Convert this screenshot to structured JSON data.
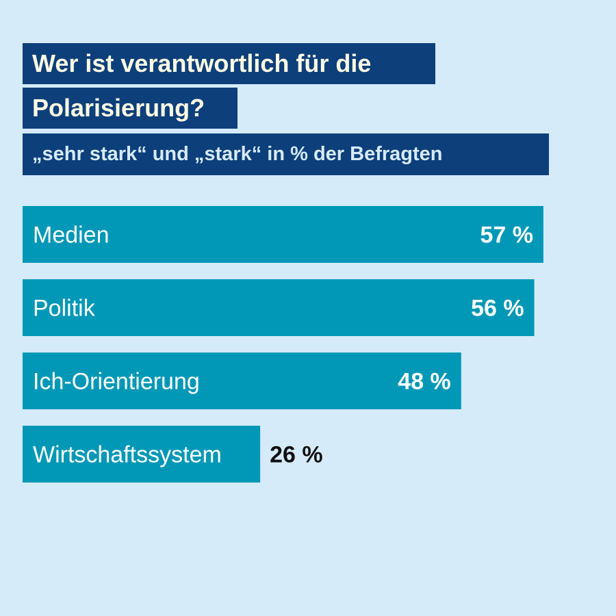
{
  "title_line1": "Wer ist verantwortlich für die",
  "title_line2": "Polarisierung?",
  "subtitle": "„sehr stark“ und „stark“ in % der Befragten",
  "colors": {
    "background": "#d5ebf9",
    "title_box": "#0d3f7a",
    "title_text": "#fffbe3",
    "bar": "#0098b6",
    "label_inside": "#ffffff",
    "label_outside": "#111111"
  },
  "chart_data": {
    "type": "bar",
    "orientation": "horizontal",
    "title": "Wer ist verantwortlich für die Polarisierung?",
    "subtitle": "„sehr stark“ und „stark“ in % der Befragten",
    "categories": [
      "Medien",
      "Politik",
      "Ich-Orientierung",
      "Wirtschaftssystem"
    ],
    "values": [
      57,
      56,
      48,
      26
    ],
    "value_labels": [
      "57 %",
      "56 %",
      "48 %",
      "26 %"
    ],
    "xlim": [
      0,
      100
    ],
    "grid": false,
    "legend": "none"
  }
}
